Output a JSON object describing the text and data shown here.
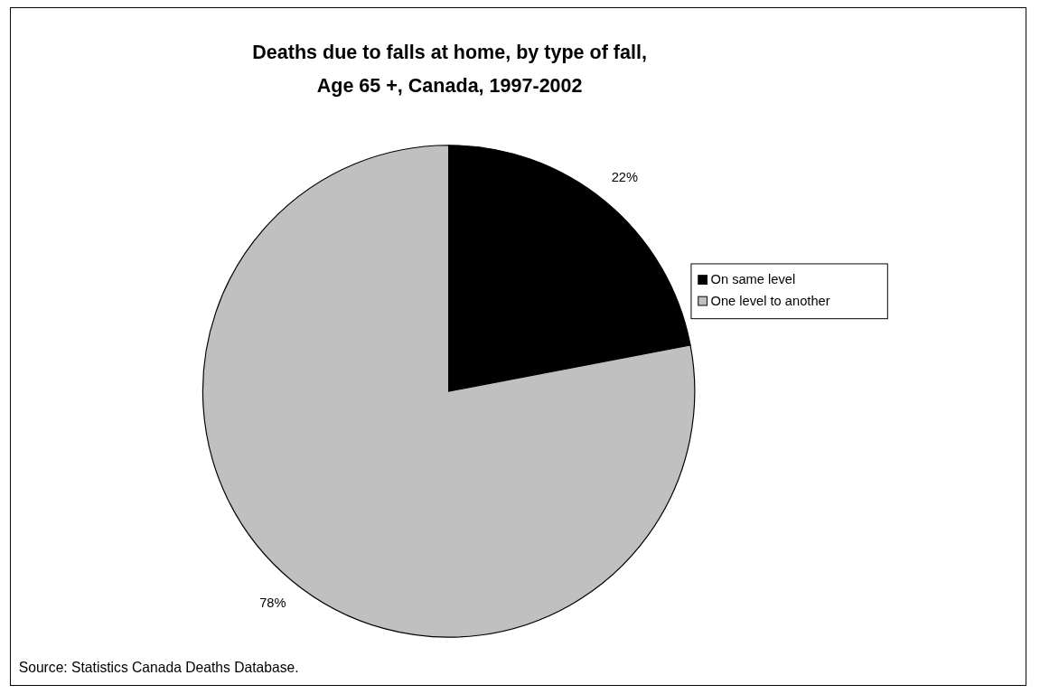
{
  "chart_data": {
    "type": "pie",
    "title": "Deaths due to falls at home, by type of fall,\nAge 65 +, Canada, 1997-2002",
    "categories": [
      "On same level",
      "One level to another"
    ],
    "values": [
      22,
      78
    ],
    "value_labels": [
      "22%",
      "78%"
    ],
    "colors": [
      "#000000",
      "#c0c0c0"
    ],
    "legend": "right",
    "annotations": [
      "Source: Statistics Canada Deaths Database."
    ]
  }
}
